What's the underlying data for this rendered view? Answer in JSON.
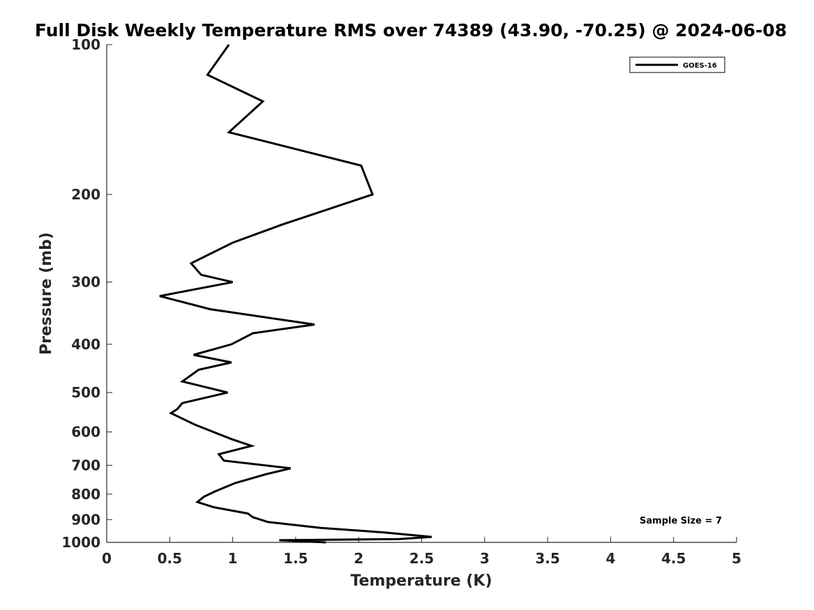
{
  "chart_data": {
    "type": "line",
    "title": "Full Disk Weekly Temperature RMS over 74389 (43.90, -70.25) @ 2024-06-08",
    "xlabel": "Temperature (K)",
    "ylabel": "Pressure (mb)",
    "xlim": [
      0,
      5
    ],
    "ylim": [
      1000,
      100
    ],
    "y_scale": "log",
    "y_reversed": true,
    "x_ticks": [
      "0",
      "0.5",
      "1",
      "1.5",
      "2",
      "2.5",
      "3",
      "3.5",
      "4",
      "4.5",
      "5"
    ],
    "y_ticks": [
      "100",
      "200",
      "300",
      "400",
      "500",
      "600",
      "700",
      "800",
      "900",
      "1000"
    ],
    "grid": false,
    "legend": {
      "position": "top-right",
      "entries": [
        "GOES-16"
      ]
    },
    "annotation": "Sample Size = 7",
    "series": [
      {
        "name": "GOES-16",
        "color": "#000000",
        "points": [
          [
            0.97,
            100
          ],
          [
            0.8,
            115
          ],
          [
            1.24,
            130
          ],
          [
            0.97,
            150
          ],
          [
            2.02,
            175
          ],
          [
            2.11,
            200
          ],
          [
            1.39,
            230
          ],
          [
            1.0,
            250
          ],
          [
            0.67,
            275
          ],
          [
            0.75,
            290
          ],
          [
            1.0,
            300
          ],
          [
            0.42,
            320
          ],
          [
            0.82,
            340
          ],
          [
            1.65,
            365
          ],
          [
            1.16,
            380
          ],
          [
            0.99,
            400
          ],
          [
            0.69,
            420
          ],
          [
            0.99,
            435
          ],
          [
            0.73,
            450
          ],
          [
            0.6,
            475
          ],
          [
            0.96,
            500
          ],
          [
            0.6,
            525
          ],
          [
            0.56,
            540
          ],
          [
            0.51,
            550
          ],
          [
            0.7,
            580
          ],
          [
            0.99,
            620
          ],
          [
            1.15,
            640
          ],
          [
            0.89,
            665
          ],
          [
            0.93,
            685
          ],
          [
            1.46,
            710
          ],
          [
            1.26,
            730
          ],
          [
            1.02,
            760
          ],
          [
            0.86,
            790
          ],
          [
            0.77,
            810
          ],
          [
            0.72,
            830
          ],
          [
            0.85,
            850
          ],
          [
            1.12,
            875
          ],
          [
            1.16,
            890
          ],
          [
            1.28,
            910
          ],
          [
            1.7,
            935
          ],
          [
            2.2,
            955
          ],
          [
            2.58,
            975
          ],
          [
            2.32,
            985
          ],
          [
            1.37,
            990
          ],
          [
            1.74,
            1000
          ]
        ]
      }
    ]
  }
}
